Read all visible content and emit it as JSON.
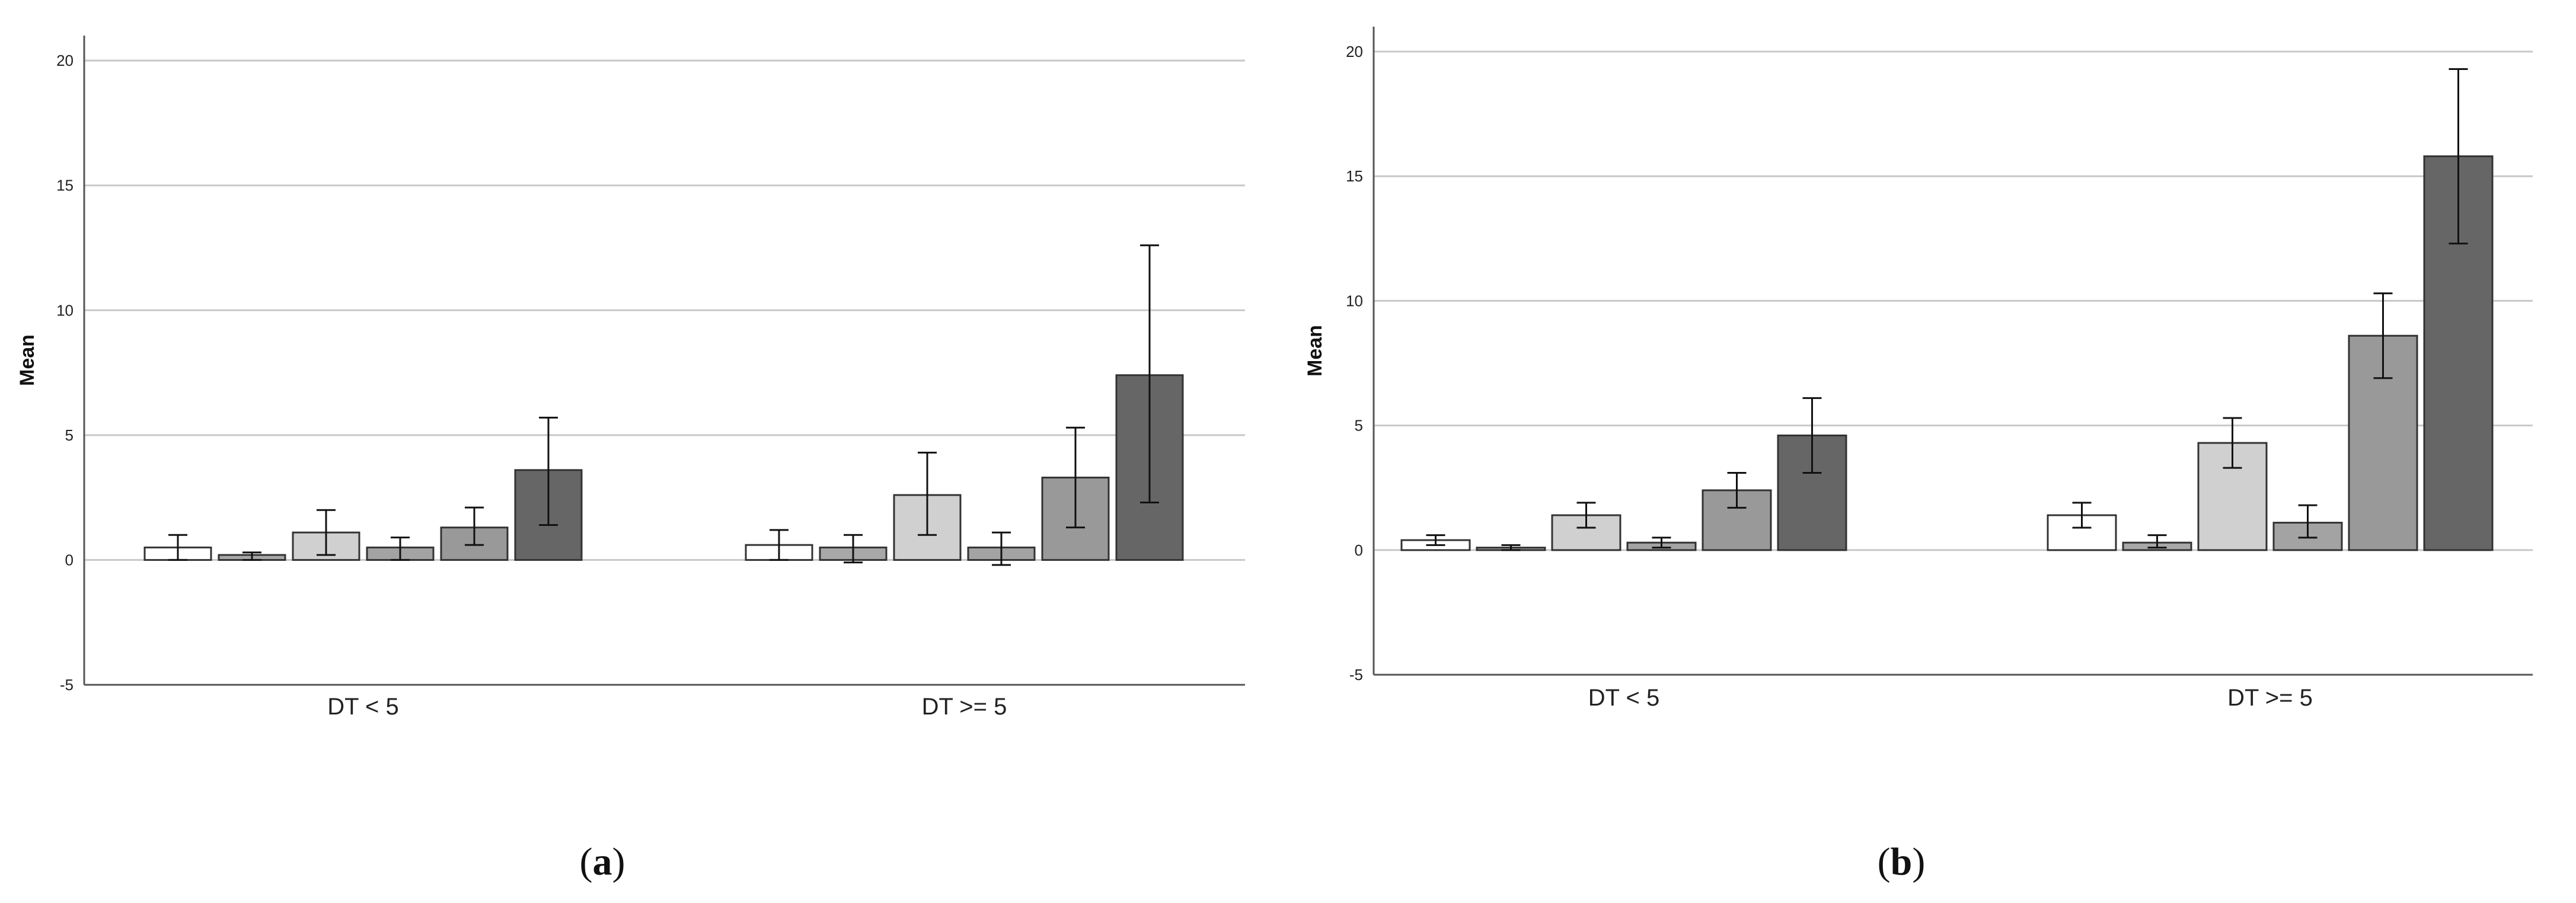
{
  "panels": [
    {
      "letter": "a"
    },
    {
      "letter": "b"
    }
  ],
  "chart_data": [
    {
      "type": "bar",
      "title": "",
      "xlabel": "",
      "ylabel": "Mean",
      "ylim": [
        -5,
        21
      ],
      "yticks": [
        -5,
        0,
        5,
        10,
        15,
        20
      ],
      "grid": true,
      "categories": [
        "DT < 5",
        "DT >= 5"
      ],
      "series": [
        {
          "values": [
            0.5,
            0.6
          ],
          "error_low": [
            0.0,
            0.0
          ],
          "error_high": [
            1.0,
            1.2
          ],
          "color": "#ffffff"
        },
        {
          "values": [
            0.2,
            0.5
          ],
          "error_low": [
            0.0,
            -0.1
          ],
          "error_high": [
            0.3,
            1.0
          ],
          "color": "#a8a8a8"
        },
        {
          "values": [
            1.1,
            2.6
          ],
          "error_low": [
            0.2,
            1.0
          ],
          "error_high": [
            2.0,
            4.3
          ],
          "color": "#d0d0d0"
        },
        {
          "values": [
            0.5,
            0.5
          ],
          "error_low": [
            0.0,
            -0.2
          ],
          "error_high": [
            0.9,
            1.1
          ],
          "color": "#a3a3a3"
        },
        {
          "values": [
            1.3,
            3.3
          ],
          "error_low": [
            0.6,
            1.3
          ],
          "error_high": [
            2.1,
            5.3
          ],
          "color": "#999999"
        },
        {
          "values": [
            3.6,
            7.4
          ],
          "error_low": [
            1.4,
            2.3
          ],
          "error_high": [
            5.7,
            12.6
          ],
          "color": "#666666"
        }
      ]
    },
    {
      "type": "bar",
      "title": "",
      "xlabel": "",
      "ylabel": "Mean",
      "ylim": [
        -5,
        21
      ],
      "yticks": [
        -5,
        0,
        5,
        10,
        15,
        20
      ],
      "grid": true,
      "categories": [
        "DT < 5",
        "DT >= 5"
      ],
      "series": [
        {
          "values": [
            0.4,
            1.4
          ],
          "error_low": [
            0.2,
            0.9
          ],
          "error_high": [
            0.6,
            1.9
          ],
          "color": "#ffffff"
        },
        {
          "values": [
            0.1,
            0.3
          ],
          "error_low": [
            0.0,
            0.1
          ],
          "error_high": [
            0.2,
            0.6
          ],
          "color": "#a8a8a8"
        },
        {
          "values": [
            1.4,
            4.3
          ],
          "error_low": [
            0.9,
            3.3
          ],
          "error_high": [
            1.9,
            5.3
          ],
          "color": "#d0d0d0"
        },
        {
          "values": [
            0.3,
            1.1
          ],
          "error_low": [
            0.1,
            0.5
          ],
          "error_high": [
            0.5,
            1.8
          ],
          "color": "#a3a3a3"
        },
        {
          "values": [
            2.4,
            8.6
          ],
          "error_low": [
            1.7,
            6.9
          ],
          "error_high": [
            3.1,
            10.3
          ],
          "color": "#999999"
        },
        {
          "values": [
            4.6,
            15.8
          ],
          "error_low": [
            3.1,
            12.3
          ],
          "error_high": [
            6.1,
            19.3
          ],
          "color": "#666666"
        }
      ]
    }
  ]
}
